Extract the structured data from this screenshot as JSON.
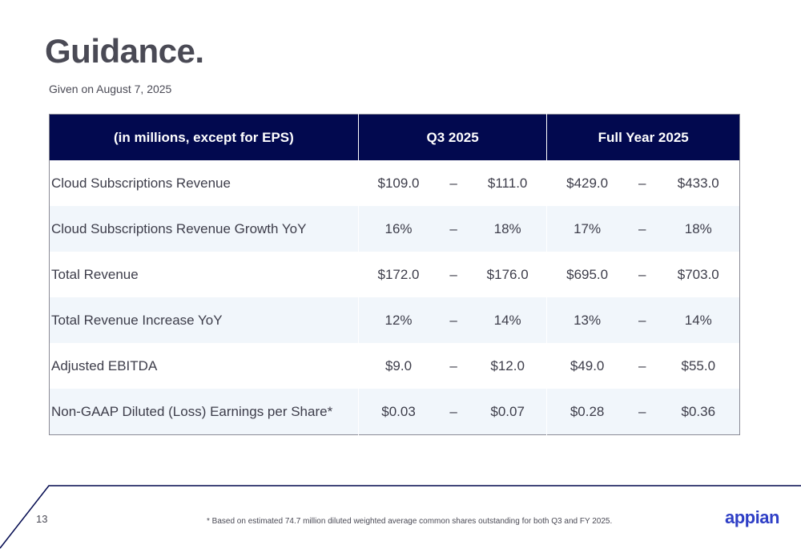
{
  "title": "Guidance.",
  "subtitle": "Given on August 7, 2025",
  "table": {
    "headers": [
      "(in millions, except for EPS)",
      "Q3 2025",
      "Full Year 2025"
    ],
    "rows": [
      {
        "metric": "Cloud Subscriptions Revenue",
        "q3_low": "$109.0",
        "q3_dash": "–",
        "q3_high": "$111.0",
        "fy_low": "$429.0",
        "fy_dash": "–",
        "fy_high": "$433.0"
      },
      {
        "metric": "Cloud Subscriptions Revenue Growth YoY",
        "q3_low": "16%",
        "q3_dash": "–",
        "q3_high": "18%",
        "fy_low": "17%",
        "fy_dash": "–",
        "fy_high": "18%"
      },
      {
        "metric": "Total Revenue",
        "q3_low": "$172.0",
        "q3_dash": "–",
        "q3_high": "$176.0",
        "fy_low": "$695.0",
        "fy_dash": "–",
        "fy_high": "$703.0"
      },
      {
        "metric": "Total Revenue Increase YoY",
        "q3_low": "12%",
        "q3_dash": "–",
        "q3_high": "14%",
        "fy_low": "13%",
        "fy_dash": "–",
        "fy_high": "14%"
      },
      {
        "metric": "Adjusted EBITDA",
        "q3_low": "$9.0",
        "q3_dash": "–",
        "q3_high": "$12.0",
        "fy_low": "$49.0",
        "fy_dash": "–",
        "fy_high": "$55.0"
      },
      {
        "metric": "Non-GAAP Diluted (Loss) Earnings per Share*",
        "q3_low": "$0.03",
        "q3_dash": "–",
        "q3_high": "$0.07",
        "fy_low": "$0.28",
        "fy_dash": "–",
        "fy_high": "$0.36"
      }
    ]
  },
  "footer": {
    "page_number": "13",
    "footnote": "* Based on estimated 74.7 million diluted weighted average common shares outstanding for both Q3 and FY 2025.",
    "logo": "appian"
  },
  "colors": {
    "header_bg": "#02094f",
    "row_alt_bg": "#f1f6fb",
    "logo": "#2f3fc6",
    "footer_line": "#02094f"
  }
}
